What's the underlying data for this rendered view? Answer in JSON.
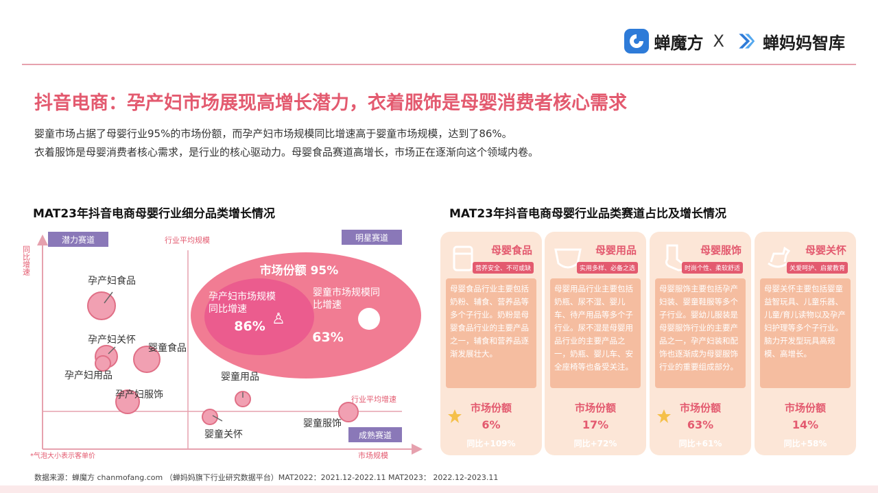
{
  "header": {
    "logo_left": "蝉魔方",
    "logo_sep": "X",
    "logo_right": "蝉妈妈智库"
  },
  "title": "抖音电商：孕产妇市场展现高增长潜力，衣着服饰是母婴消费者核心需求",
  "description": [
    "婴童市场占据了母婴行业95%的市场份额，而孕产妇市场规模同比增速高于婴童市场规模，达到了86%。",
    "衣着服饰是母婴消费者核心需求，是行业的核心驱动力。母婴食品赛道高增长，市场正在逐渐向这个领域内卷。"
  ],
  "left_chart": {
    "title": "MAT23年抖音电商母婴行业细分品类增长情况",
    "quadrant_tags": {
      "potential": "潜力赛道",
      "star": "明星赛道",
      "mature": "成熟赛道"
    },
    "axis_labels": {
      "y": "同比增速",
      "x": "市场规模",
      "avg_scale": "行业平均规模",
      "avg_growth": "行业平均增速"
    },
    "note": "*气泡大小表示客单价",
    "ellipse": {
      "share_label": "市场份额 95%",
      "maternal_label": "孕产妇市场规模同比增速",
      "maternal_value": "86%",
      "infant_label": "婴童市场规模同比增速",
      "infant_value": "63%"
    },
    "bubbles": [
      {
        "label": "孕产妇食品"
      },
      {
        "label": "孕产妇关怀"
      },
      {
        "label": "婴童食品"
      },
      {
        "label": "孕产妇用品"
      },
      {
        "label": "孕产妇服饰"
      },
      {
        "label": "婴童用品"
      },
      {
        "label": "婴童关怀"
      },
      {
        "label": "婴童服饰"
      }
    ]
  },
  "right_panel": {
    "title": "MAT23年抖音电商母婴行业品类赛道占比及增长情况",
    "share_label": "市场份额",
    "cards": [
      {
        "name": "母婴食品",
        "tag": "营养安全、不可或缺",
        "icon": "milk-bottle-icon",
        "body": "母婴食品行业主要包括奶粉、辅食、营养品等多个子行业。奶粉是母婴食品行业的主要产品之一，辅食和营养品逐渐发展壮大。",
        "share": "6%",
        "growth": "同比+109%"
      },
      {
        "name": "母婴用品",
        "tag": "实用多样、必备之选",
        "icon": "diaper-icon",
        "body": "母婴用品行业主要包括奶瓶、尿不湿、婴儿车、待产用品等多个子行业。尿不湿是母婴用品行业的主要产品之一，奶瓶、婴儿车、安全座椅等也备受关注。",
        "share": "17%",
        "growth": "同比+72%"
      },
      {
        "name": "母婴服饰",
        "tag": "时尚个性、柔软舒适",
        "icon": "sock-icon",
        "body": "母婴服饰主要包括孕产妇装、婴童鞋服等多个子行业。婴幼儿服装是母婴服饰行业的主要产品之一，孕产妇装和配饰也逐渐成为母婴服饰行业的重要组成部分。",
        "share": "63%",
        "growth": "同比+61%"
      },
      {
        "name": "母婴关怀",
        "tag": "关爱呵护、启蒙教育",
        "icon": "rocking-horse-icon",
        "body": "母婴关怀主要包括婴童益智玩具、儿童乐器、儿童/育儿读物以及孕产妇护理等多个子行业。脑力开发型玩具高规模、高增长。",
        "share": "14%",
        "growth": "同比+58%"
      }
    ]
  },
  "source": "数据来源：蝉魔方 chanmofang.com （蝉妈妈旗下行业研究数据平台）MAT2022：2021.12-2022.11 MAT2023： 2022.12-2023.11",
  "colors": {
    "accent": "#e35a6f",
    "card_bg": "#fce6d7",
    "card_body": "#f5bda0",
    "tag_purple": "#8a78b8"
  }
}
